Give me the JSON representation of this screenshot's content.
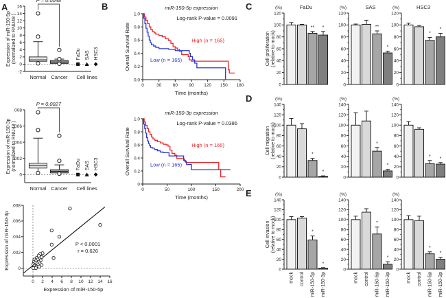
{
  "chart_data": [
    {
      "id": "A1",
      "panel": "A",
      "type": "box",
      "ylabel": [
        "Expression of miR-150-5p",
        "(normalized to RNU48 )"
      ],
      "ylim": [
        -2,
        16
      ],
      "yticks": [
        -2,
        0,
        2,
        4,
        6,
        8,
        10,
        12,
        14,
        16
      ],
      "pvalue": "P = 0.0048",
      "categories": [
        "Normal",
        "Cancer",
        "Cell lines"
      ],
      "boxes": [
        {
          "name": "Normal",
          "min": 0.3,
          "q1": 0.8,
          "median": 1.2,
          "q3": 2.0,
          "whisker_high": 6.2,
          "outliers": [
            14.0,
            7.6,
            0.2
          ]
        },
        {
          "name": "Cancer",
          "min": 0.1,
          "q1": 0.2,
          "median": 0.6,
          "q3": 1.0,
          "whisker_high": 1.4,
          "outliers": [
            3.9,
            1.4,
            0.1
          ]
        }
      ],
      "cell_lines": [
        {
          "name": "FaDu",
          "value": 0,
          "marker": "square"
        },
        {
          "name": "SAS",
          "value": 0,
          "marker": "triangle"
        },
        {
          "name": "HSC3",
          "value": 0,
          "marker": "diamond"
        }
      ]
    },
    {
      "id": "A2",
      "panel": "A",
      "type": "box",
      "ylabel": [
        "Expression of miR-150-3p",
        "(normalized to RNU48 )"
      ],
      "ylim": [
        -0.001,
        0.008
      ],
      "yticks": [
        0,
        0.002,
        0.004,
        0.006,
        0.008
      ],
      "yticklabels": [
        "0",
        ".002",
        ".004",
        ".006",
        ".008"
      ],
      "pvalue": "P = 0.0027",
      "categories": [
        "Normal",
        "Cancer",
        "Cell lines"
      ],
      "boxes": [
        {
          "name": "Normal",
          "min": 0.0003,
          "q1": 0.0008,
          "median": 0.0011,
          "q3": 0.0014,
          "whisker_high": 0.0045,
          "outliers": [
            0.0077,
            0.0055,
            0.0002
          ]
        },
        {
          "name": "Cancer",
          "min": 0.0001,
          "q1": 0.0002,
          "median": 0.0004,
          "q3": 0.0006,
          "whisker_high": 0.0012,
          "outliers": [
            0.0048,
            0.0017,
            0.0001
          ]
        }
      ],
      "cell_lines": [
        {
          "name": "FaDu",
          "value": 0,
          "marker": "square"
        },
        {
          "name": "SAS",
          "value": 0,
          "marker": "triangle"
        },
        {
          "name": "HSC3",
          "value": 0,
          "marker": "diamond"
        }
      ]
    },
    {
      "id": "A3",
      "panel": "A",
      "type": "scatter",
      "xlabel": "Expression of miR-150-5p",
      "ylabel": "Expression of miR-150-3p",
      "xlim": [
        -2,
        16
      ],
      "ylim": [
        -0.001,
        0.008
      ],
      "xticks": [
        0,
        2,
        4,
        6,
        8,
        10,
        12,
        14,
        16
      ],
      "yticks": [
        0,
        0.002,
        0.004,
        0.006,
        0.008
      ],
      "yticklabels": [
        "0",
        ".002",
        ".004",
        ".006",
        ".008"
      ],
      "annotation": [
        "P < 0.0001",
        "r = 0.626"
      ],
      "regression": {
        "x0": -2,
        "y0": -0.00065,
        "x1": 15,
        "y1": 0.0078
      },
      "points": [
        [
          7.7,
          0.0076
        ],
        [
          14,
          0.0055
        ],
        [
          3.9,
          0.0048
        ],
        [
          5.5,
          0.004
        ],
        [
          3.9,
          0.003
        ],
        [
          4.3,
          0.0013
        ],
        [
          2,
          0.0019
        ],
        [
          1.5,
          0.0018
        ],
        [
          1.2,
          0.0016
        ],
        [
          1.8,
          0.0014
        ],
        [
          0.8,
          0.0013
        ],
        [
          0.3,
          0.0011
        ],
        [
          1.0,
          0.0011
        ],
        [
          1.6,
          0.001
        ],
        [
          0.6,
          0.0009
        ],
        [
          0.2,
          0.0008
        ],
        [
          1.2,
          0.0008
        ],
        [
          0.5,
          0.0007
        ],
        [
          0.9,
          0.0006
        ],
        [
          1.4,
          0.0006
        ],
        [
          0.1,
          0.0005
        ],
        [
          0.4,
          0.0004
        ],
        [
          1.1,
          0.0004
        ],
        [
          1.8,
          0.0004
        ],
        [
          0.3,
          0.0003
        ],
        [
          0.7,
          0.0002
        ],
        [
          1.3,
          0.0002
        ],
        [
          0.2,
          0.0001
        ],
        [
          0.6,
          0.0
        ],
        [
          0.1,
          0.0
        ]
      ]
    },
    {
      "id": "B1",
      "panel": "B",
      "type": "line",
      "title": "miR-150-5p expression",
      "annotation": "Log-rank P-value = 0.0091",
      "xlabel": "Time (months)",
      "ylabel": "Overall Survival Rate",
      "xlim": [
        0,
        180
      ],
      "ylim": [
        0,
        1.0
      ],
      "xticks": [
        0,
        30,
        60,
        90,
        120,
        150,
        180
      ],
      "yticks": [
        0,
        0.2,
        0.4,
        0.6,
        0.8,
        1.0
      ],
      "yticklabels": [
        "0.0",
        "0.2",
        "0.4",
        "0.6",
        "0.8",
        "1.0"
      ],
      "series": [
        {
          "name": "High (n = 165)",
          "color": "#e8262a",
          "x": [
            0,
            3,
            6,
            9,
            12,
            15,
            18,
            21,
            24,
            30,
            36,
            42,
            48,
            52,
            56,
            60,
            64,
            68,
            72,
            80,
            84,
            86,
            90,
            100,
            110,
            120,
            150,
            155,
            158,
            160,
            170
          ],
          "y": [
            1.0,
            0.95,
            0.9,
            0.85,
            0.8,
            0.76,
            0.73,
            0.71,
            0.69,
            0.67,
            0.65,
            0.62,
            0.59,
            0.55,
            0.5,
            0.48,
            0.46,
            0.43,
            0.38,
            0.38,
            0.35,
            0.3,
            0.28,
            0.28,
            0.28,
            0.28,
            0.28,
            0.28,
            0.15,
            0.1,
            0.1
          ]
        },
        {
          "name": "Low (n = 165)",
          "color": "#2b35d8",
          "x": [
            0,
            2,
            4,
            6,
            8,
            10,
            12,
            14,
            16,
            20,
            24,
            30,
            36,
            42,
            48,
            54,
            60,
            66,
            72,
            80,
            86,
            88,
            92,
            96,
            100,
            110,
            120,
            140,
            150,
            153
          ],
          "y": [
            1.0,
            0.93,
            0.85,
            0.78,
            0.72,
            0.66,
            0.6,
            0.56,
            0.53,
            0.51,
            0.49,
            0.47,
            0.47,
            0.47,
            0.46,
            0.46,
            0.44,
            0.44,
            0.44,
            0.44,
            0.4,
            0.35,
            0.3,
            0.25,
            0.18,
            0.18,
            0.18,
            0.18,
            0.18,
            0.0
          ]
        }
      ]
    },
    {
      "id": "B2",
      "panel": "B",
      "type": "line",
      "title": "miR-150-3p expression",
      "annotation": "Log-rank P-value = 0.0386",
      "xlabel": "Time (months)",
      "ylabel": "Overall Survival Rate",
      "xlim": [
        0,
        200
      ],
      "ylim": [
        0,
        1.0
      ],
      "xticks": [
        0,
        50,
        100,
        150,
        200
      ],
      "yticks": [
        0,
        0.2,
        0.4,
        0.6,
        0.8,
        1.0
      ],
      "yticklabels": [
        "0",
        "0.2",
        "0.4",
        "0.6",
        "0.8",
        "1.0"
      ],
      "series": [
        {
          "name": "High (n = 165)",
          "color": "#e8262a",
          "x": [
            0,
            3,
            6,
            9,
            12,
            15,
            18,
            21,
            25,
            30,
            36,
            42,
            48,
            52,
            56,
            60,
            66,
            70,
            80,
            84,
            88,
            100,
            120,
            150,
            156,
            160,
            170
          ],
          "y": [
            1.0,
            0.95,
            0.9,
            0.85,
            0.8,
            0.76,
            0.72,
            0.69,
            0.67,
            0.65,
            0.63,
            0.61,
            0.6,
            0.58,
            0.52,
            0.47,
            0.44,
            0.39,
            0.39,
            0.36,
            0.33,
            0.33,
            0.33,
            0.33,
            0.22,
            0.11,
            0.11
          ]
        },
        {
          "name": "Low (n = 165)",
          "color": "#2b35d8",
          "x": [
            0,
            2,
            4,
            6,
            8,
            10,
            12,
            14,
            16,
            20,
            24,
            30,
            36,
            42,
            48,
            54,
            60,
            80,
            84,
            86,
            90,
            100,
            120,
            150,
            160,
            180
          ],
          "y": [
            1.0,
            0.92,
            0.85,
            0.78,
            0.71,
            0.66,
            0.62,
            0.59,
            0.56,
            0.55,
            0.53,
            0.51,
            0.49,
            0.48,
            0.48,
            0.43,
            0.43,
            0.43,
            0.38,
            0.35,
            0.3,
            0.22,
            0.22,
            0.22,
            0.22,
            0.22
          ]
        }
      ]
    },
    {
      "id": "C-FaDu",
      "panel": "C",
      "type": "bar",
      "title": "FaDu",
      "unit": "(%)",
      "ylabel": [
        "Cell proliferation",
        "(relative to mock)"
      ],
      "categories": [
        "mock",
        "control",
        "miR-150-5p",
        "miR-150-3p"
      ],
      "values": [
        100,
        100,
        86,
        83
      ],
      "errors": [
        4,
        1,
        3,
        6
      ],
      "sig": [
        "",
        "",
        "**",
        "*"
      ],
      "ylim": [
        0,
        120
      ],
      "yticks": [
        0,
        20,
        40,
        60,
        80,
        100,
        120
      ]
    },
    {
      "id": "C-SAS",
      "panel": "C",
      "type": "bar",
      "title": "SAS",
      "unit": "(%)",
      "categories": [
        "mock",
        "control",
        "miR-150-5p",
        "miR-150-3p"
      ],
      "values": [
        100,
        101,
        85,
        53
      ],
      "errors": [
        1.5,
        7,
        5,
        3
      ],
      "sig": [
        "",
        "",
        "**",
        "*"
      ],
      "ylim": [
        0,
        120
      ],
      "yticks": [
        0,
        20,
        40,
        60,
        80,
        100,
        120
      ]
    },
    {
      "id": "C-HSC3",
      "panel": "C",
      "type": "bar",
      "title": "HSC3",
      "unit": "(%)",
      "categories": [
        "mock",
        "control",
        "miR-150-5p",
        "miR-150-3p"
      ],
      "values": [
        100,
        97,
        74,
        80
      ],
      "errors": [
        3,
        2,
        5,
        6
      ],
      "sig": [
        "",
        "",
        "*",
        "*"
      ],
      "ylim": [
        0,
        120
      ],
      "yticks": [
        0,
        20,
        40,
        60,
        80,
        100,
        120
      ]
    },
    {
      "id": "D-FaDu",
      "panel": "D",
      "type": "bar",
      "unit": "(%)",
      "ylabel": [
        "Cell migration",
        "(relative to mock)"
      ],
      "categories": [
        "mock",
        "control",
        "miR-150-5p",
        "miR-150-3p"
      ],
      "values": [
        100,
        93,
        32,
        1.5
      ],
      "errors": [
        13,
        10,
        4,
        1
      ],
      "sig": [
        "",
        "",
        "*",
        "*"
      ],
      "ylim": [
        0,
        140
      ],
      "yticks": [
        0,
        20,
        40,
        60,
        80,
        100,
        120,
        140
      ]
    },
    {
      "id": "D-SAS",
      "panel": "D",
      "type": "bar",
      "unit": "(%)",
      "categories": [
        "mock",
        "control",
        "miR-150-5p",
        "miR-150-3p"
      ],
      "values": [
        100,
        108,
        50,
        12
      ],
      "errors": [
        24,
        19,
        7,
        3
      ],
      "sig": [
        "",
        "",
        "*",
        "*"
      ],
      "ylim": [
        0,
        140
      ],
      "yticks": [
        0,
        20,
        40,
        60,
        80,
        100,
        120,
        140
      ]
    },
    {
      "id": "D-HSC3",
      "panel": "D",
      "type": "bar",
      "unit": "(%)",
      "categories": [
        "mock",
        "control",
        "miR-150-5p",
        "miR-150-3p"
      ],
      "values": [
        100,
        92,
        26,
        25
      ],
      "errors": [
        7,
        3,
        6,
        3
      ],
      "sig": [
        "",
        "",
        "*",
        "*"
      ],
      "ylim": [
        0,
        140
      ],
      "yticks": [
        0,
        20,
        40,
        60,
        80,
        100,
        120,
        140
      ]
    },
    {
      "id": "E-FaDu",
      "panel": "E",
      "type": "bar",
      "unit": "(%)",
      "ylabel": [
        "Cell invasion",
        "(relative to mock)"
      ],
      "categories": [
        "mock",
        "control",
        "miR-150-5p",
        "miR-150-3p"
      ],
      "values": [
        100,
        103,
        59,
        2
      ],
      "errors": [
        6,
        3,
        8,
        1
      ],
      "sig": [
        "",
        "",
        "*",
        "*"
      ],
      "ylim": [
        0,
        140
      ],
      "yticks": [
        0,
        20,
        40,
        60,
        80,
        100,
        120,
        140
      ]
    },
    {
      "id": "E-SAS",
      "panel": "E",
      "type": "bar",
      "unit": "(%)",
      "categories": [
        "mock",
        "control",
        "miR-150-5p",
        "miR-150-3p"
      ],
      "values": [
        100,
        115,
        71,
        10
      ],
      "errors": [
        7,
        7,
        14,
        5
      ],
      "sig": [
        "",
        "",
        "*",
        "*"
      ],
      "ylim": [
        0,
        140
      ],
      "yticks": [
        0,
        20,
        40,
        60,
        80,
        100,
        120,
        140
      ]
    },
    {
      "id": "E-HSC3",
      "panel": "E",
      "type": "bar",
      "unit": "(%)",
      "categories": [
        "mock",
        "control",
        "miR-150-5p",
        "miR-150-3p"
      ],
      "values": [
        100,
        98,
        31,
        20
      ],
      "errors": [
        8,
        9,
        4,
        4
      ],
      "sig": [
        "",
        "",
        "*",
        "*"
      ],
      "ylim": [
        0,
        140
      ],
      "yticks": [
        0,
        20,
        40,
        60,
        80,
        100,
        120,
        140
      ]
    }
  ],
  "panel_labels": [
    "A",
    "B",
    "C",
    "D",
    "E"
  ],
  "bar_colors": [
    "#f2f2f2",
    "#d9d9d9",
    "#a6a6a6",
    "#7f7f7f"
  ]
}
